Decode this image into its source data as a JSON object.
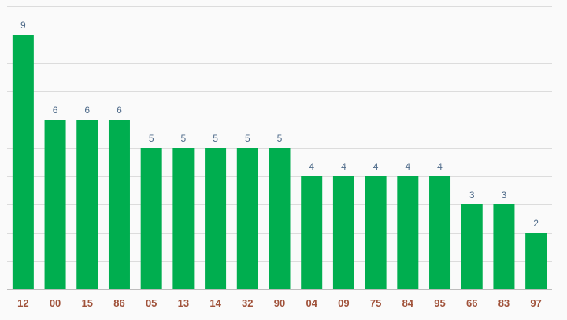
{
  "chart_data": {
    "type": "bar",
    "categories": [
      "12",
      "00",
      "15",
      "86",
      "05",
      "13",
      "14",
      "32",
      "90",
      "04",
      "09",
      "75",
      "84",
      "95",
      "66",
      "83",
      "97"
    ],
    "values": [
      9,
      6,
      6,
      6,
      5,
      5,
      5,
      5,
      5,
      4,
      4,
      4,
      4,
      4,
      3,
      3,
      2
    ],
    "title": "",
    "xlabel": "",
    "ylabel": "",
    "ylim": [
      0,
      10
    ],
    "grid": true,
    "legend": "none",
    "colors": {
      "bar": "#00ae4f",
      "value_label": "#4f6b8a",
      "category_label": "#a0523a",
      "grid": "#dcdcdc"
    }
  }
}
